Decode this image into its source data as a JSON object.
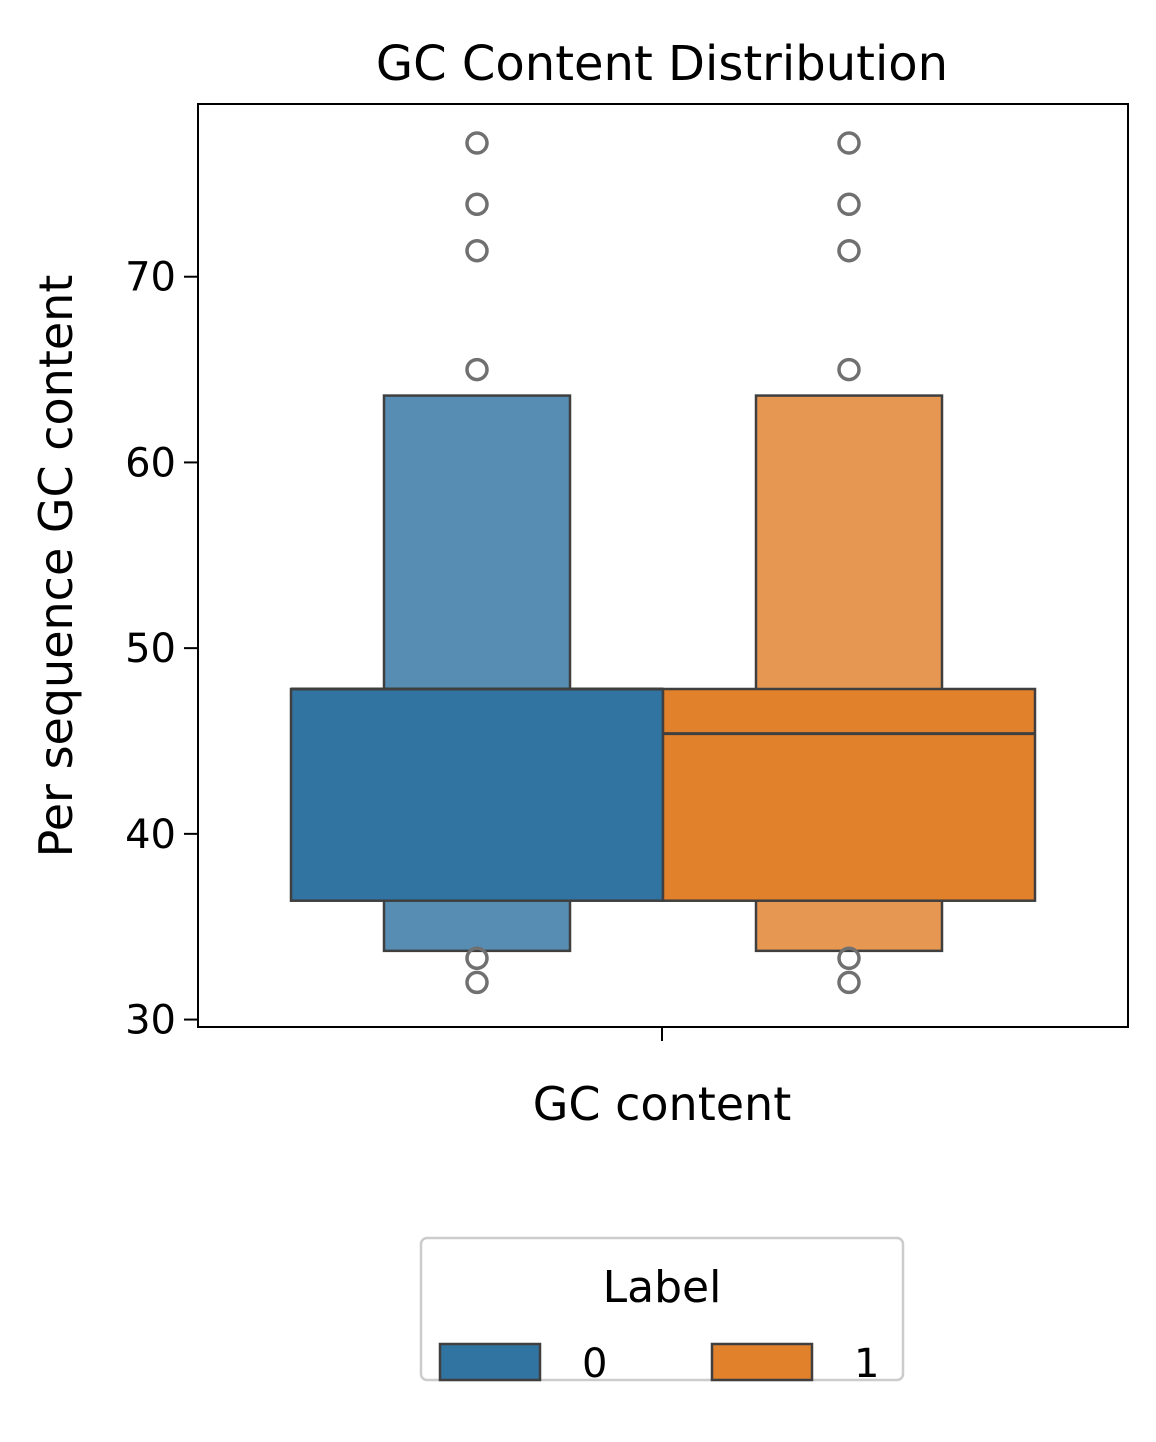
{
  "chart_data": {
    "type": "boxen",
    "title": "GC Content Distribution",
    "xlabel": "GC content",
    "ylabel": "Per sequence GC content",
    "categories": [
      "GC content"
    ],
    "ylim": [
      29.6,
      79.3
    ],
    "yticks": [
      30,
      40,
      50,
      60,
      70
    ],
    "grid": false,
    "legend": {
      "title": "Label",
      "placement": "bottom-center",
      "entries": [
        {
          "label": "0",
          "color": "#3274a1"
        },
        {
          "label": "1",
          "color": "#e1812c"
        }
      ]
    },
    "series": [
      {
        "name": "0",
        "color": "#3274a1",
        "boxes": [
          {
            "low": 36.4,
            "high": 47.8,
            "level": 0
          },
          {
            "low": 33.7,
            "high": 63.6,
            "level": 1
          }
        ],
        "median": 47.8,
        "outliers": [
          77.2,
          73.9,
          71.4,
          65.0,
          33.3,
          32.0
        ]
      },
      {
        "name": "1",
        "color": "#e1812c",
        "boxes": [
          {
            "low": 36.4,
            "high": 47.8,
            "level": 0
          },
          {
            "low": 33.7,
            "high": 63.6,
            "level": 1
          }
        ],
        "median": 45.4,
        "outliers": [
          77.2,
          73.9,
          71.4,
          65.0,
          33.3,
          32.0
        ]
      }
    ]
  }
}
